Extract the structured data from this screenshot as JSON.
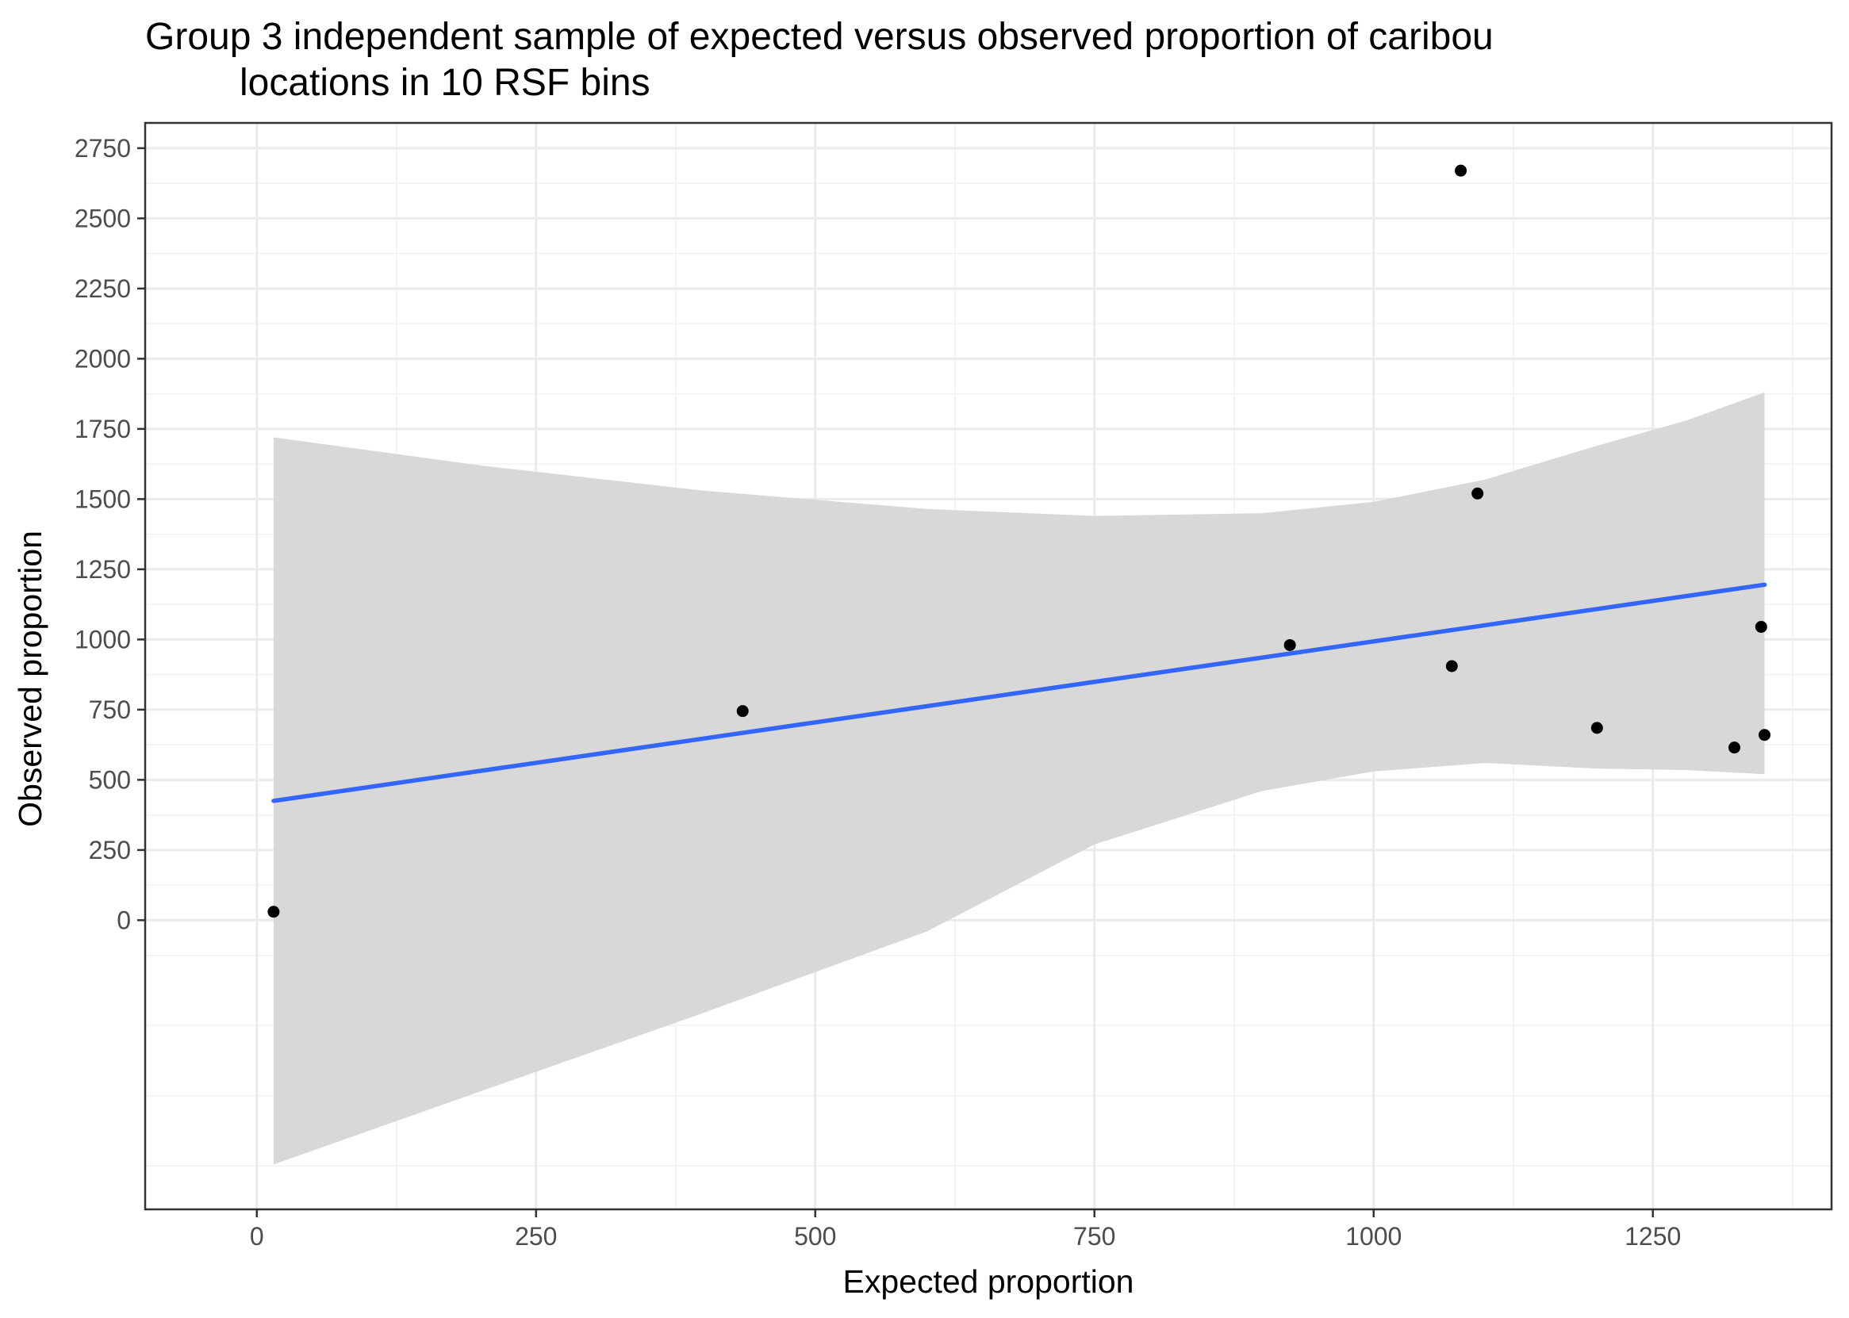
{
  "chart_data": {
    "type": "scatter",
    "title_lines": [
      "Group 3 independent sample of expected versus observed proportion of caribou",
      "locations in 10 RSF bins"
    ],
    "xlabel": "Expected proportion",
    "ylabel": "Observed proportion",
    "xlim": [
      -100,
      1410
    ],
    "ylim": [
      -1030,
      2840
    ],
    "x_ticks": [
      0,
      250,
      500,
      750,
      1000,
      1250
    ],
    "x_tick_labels": [
      "0",
      "250",
      "500",
      "750",
      "1000",
      "1250"
    ],
    "x_minor_ticks": [
      125,
      375,
      625,
      875,
      1125,
      1375
    ],
    "y_ticks": [
      0,
      250,
      500,
      750,
      1000,
      1250,
      1500,
      1750,
      2000,
      2250,
      2500,
      2750
    ],
    "y_tick_labels": [
      "0",
      "250",
      "500",
      "750",
      "1000",
      "1250",
      "1500",
      "1750",
      "2000",
      "2250",
      "2500",
      "2750"
    ],
    "y_minor_ticks": [
      -875,
      -625,
      -375,
      -125,
      125,
      375,
      625,
      875,
      1125,
      1375,
      1625,
      1875,
      2125,
      2375,
      2625
    ],
    "grid": true,
    "legend": "none",
    "points": [
      {
        "x": 15,
        "y": 30
      },
      {
        "x": 435,
        "y": 745
      },
      {
        "x": 925,
        "y": 980
      },
      {
        "x": 1070,
        "y": 905
      },
      {
        "x": 1078,
        "y": 2670
      },
      {
        "x": 1093,
        "y": 1520
      },
      {
        "x": 1200,
        "y": 685
      },
      {
        "x": 1323,
        "y": 615
      },
      {
        "x": 1347,
        "y": 1045
      },
      {
        "x": 1350,
        "y": 660
      }
    ],
    "fit_line": {
      "x": [
        15,
        1350
      ],
      "y": [
        425,
        1195
      ]
    },
    "confidence_band": {
      "x": [
        15,
        200,
        400,
        600,
        750,
        900,
        1000,
        1100,
        1200,
        1280,
        1350
      ],
      "upper": [
        1720,
        1620,
        1530,
        1465,
        1440,
        1450,
        1490,
        1570,
        1690,
        1780,
        1880
      ],
      "lower": [
        -870,
        -610,
        -330,
        -40,
        270,
        460,
        530,
        560,
        540,
        535,
        520
      ]
    },
    "colors": {
      "point": "#000000",
      "fit_line": "#3366ff",
      "band": "#d6d6d6",
      "grid_major": "#ebebeb",
      "grid_minor": "#f2f2f2",
      "panel_border": "#333333",
      "tick": "#333333"
    }
  }
}
